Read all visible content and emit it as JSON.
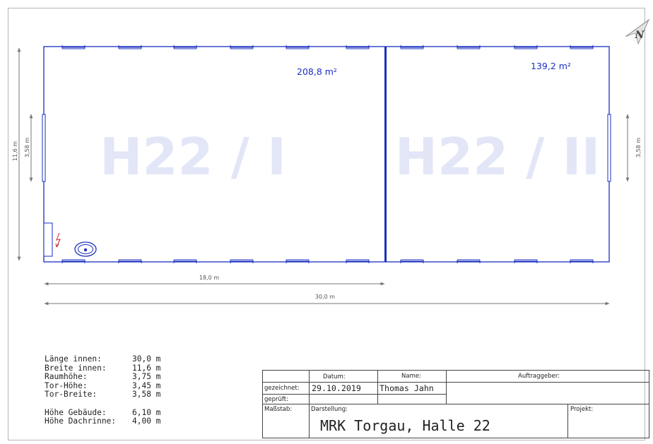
{
  "rooms": [
    {
      "watermark": "H22 / I",
      "area": "208,8 m²"
    },
    {
      "watermark": "H22 / II",
      "area": "139,2 m²"
    }
  ],
  "dimensions": {
    "height_total": "11,6 m",
    "gate_left": "3,58 m",
    "gate_right": "3,58 m",
    "length_partial": "18,0 m",
    "length_total": "30,0 m"
  },
  "compass": {
    "label": "N",
    "icon": "north-arrow-icon"
  },
  "specs": [
    {
      "label": "Länge innen:",
      "value": "30,0 m"
    },
    {
      "label": "Breite innen:",
      "value": "11,6 m"
    },
    {
      "label": "Raumhöhe:",
      "value": "3,75 m"
    },
    {
      "label": "Tor-Höhe:",
      "value": "3,45 m"
    },
    {
      "label": "Tor-Breite:",
      "value": "3,58 m"
    },
    {
      "label": "Höhe Gebäude:",
      "value": "6,10 m"
    },
    {
      "label": "Höhe Dachrinne:",
      "value": "4,00 m"
    }
  ],
  "title_block": {
    "header_datum": "Datum:",
    "header_name": "Name:",
    "header_auftraggeber": "Auftraggeber:",
    "row_gezeichnet": "gezeichnet:",
    "row_geprueft": "geprüft:",
    "datum_value": "29.10.2019",
    "name_value": "Thomas Jahn",
    "massstab": "Maßstab:",
    "darstellung": "Darstellung:",
    "projekt": "Projekt:",
    "title": "MRK Torgau, Halle 22"
  },
  "colors": {
    "wall": "#1a2fbf",
    "watermark": "#e3e6f7",
    "electric": "#d42020"
  }
}
